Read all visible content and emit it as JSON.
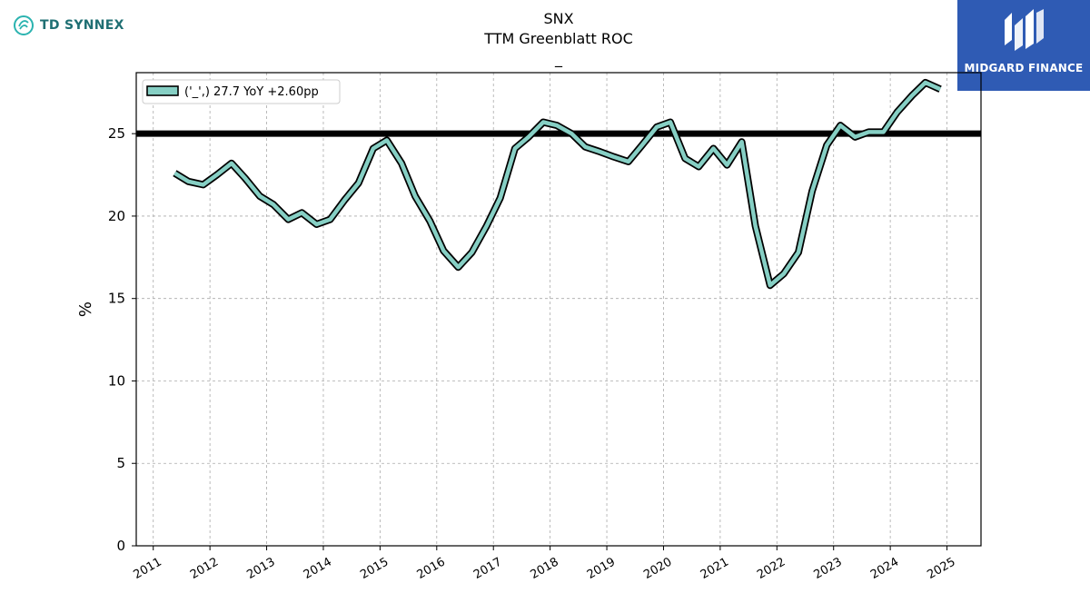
{
  "header": {
    "company_logo_text": "TD SYNNEX",
    "brand_logo_text": "MIDGARD FINANCE"
  },
  "colors": {
    "series_fill": "#86cfc4",
    "series_outline": "#000000",
    "reference_line": "#000000",
    "company_logo": "#1f6f73",
    "brand_background": "#2f5bb4"
  },
  "chart_data": {
    "type": "line",
    "title": "SNX",
    "subtitle": "TTM Greenblatt ROC",
    "subtitle2": "_",
    "xlabel": "",
    "ylabel": "%",
    "ylim": [
      0,
      28.7
    ],
    "xlim": [
      2010.7,
      2025.6
    ],
    "yticks": [
      0,
      5,
      10,
      15,
      20,
      25
    ],
    "xticks": [
      "2011",
      "2012",
      "2013",
      "2014",
      "2015",
      "2016",
      "2017",
      "2018",
      "2019",
      "2020",
      "2021",
      "2022",
      "2023",
      "2024",
      "2025"
    ],
    "grid": true,
    "legend_position": "top-left",
    "reference_line": 25,
    "series": [
      {
        "name": "('_',) 27.7 YoY +2.60pp",
        "x": [
          2011.38,
          2011.62,
          2011.88,
          2012.12,
          2012.38,
          2012.62,
          2012.88,
          2013.12,
          2013.38,
          2013.62,
          2013.88,
          2014.12,
          2014.38,
          2014.62,
          2014.88,
          2015.12,
          2015.38,
          2015.62,
          2015.88,
          2016.12,
          2016.38,
          2016.62,
          2016.88,
          2017.12,
          2017.38,
          2017.62,
          2017.88,
          2018.12,
          2018.38,
          2018.62,
          2018.88,
          2019.12,
          2019.38,
          2019.62,
          2019.88,
          2020.12,
          2020.38,
          2020.62,
          2020.88,
          2021.12,
          2021.38,
          2021.62,
          2021.88,
          2022.12,
          2022.38,
          2022.62,
          2022.88,
          2023.12,
          2023.38,
          2023.62,
          2023.88,
          2024.12,
          2024.38,
          2024.62,
          2024.88
        ],
        "values": [
          22.6,
          22.1,
          21.9,
          22.5,
          23.2,
          22.3,
          21.2,
          20.7,
          19.8,
          20.2,
          19.5,
          19.8,
          21.0,
          22.0,
          24.1,
          24.6,
          23.2,
          21.2,
          19.7,
          17.9,
          16.9,
          17.8,
          19.4,
          21.1,
          24.1,
          24.8,
          25.7,
          25.5,
          25.0,
          24.2,
          23.9,
          23.6,
          23.3,
          24.3,
          25.4,
          25.7,
          23.5,
          23.0,
          24.1,
          23.1,
          24.5,
          19.4,
          15.8,
          16.5,
          17.8,
          21.5,
          24.3,
          25.5,
          24.8,
          25.1,
          25.1,
          26.3,
          27.3,
          28.1,
          27.7
        ]
      }
    ]
  }
}
